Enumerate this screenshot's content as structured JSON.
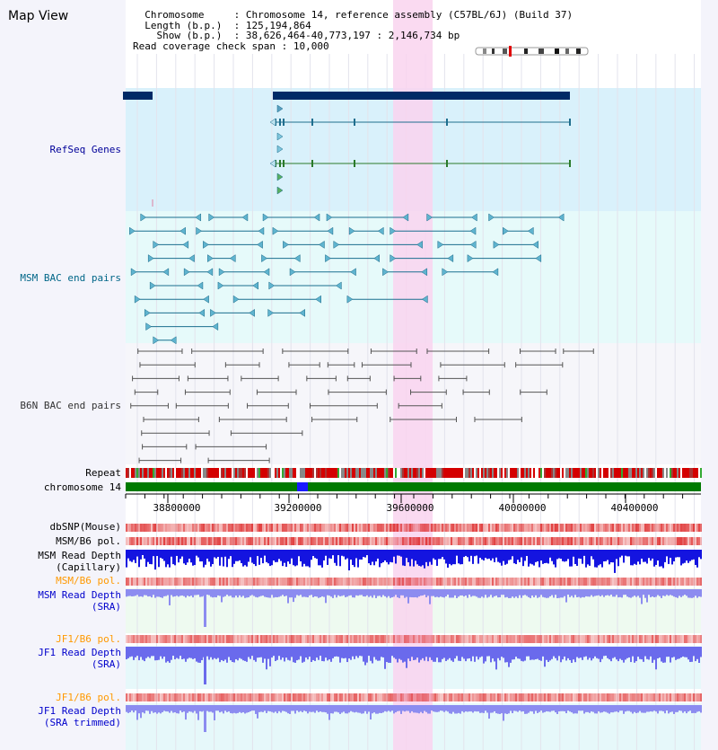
{
  "header": {
    "title": "Map View",
    "chromosome_label": "Chromosome",
    "chromosome_value": "Chromosome 14, reference assembly (C57BL/6J) (Build 37)",
    "length_label": "Length (b.p.)",
    "length_value": "125,194,864",
    "show_label": "Show (b.p.)",
    "show_value": "38,626,464-40,773,197 : 2,146,734 bp",
    "coverage_label": "Read coverage check span",
    "coverage_value": "10,000"
  },
  "tracks": {
    "refseq": {
      "label": "RefSeq Genes",
      "color": "#000099"
    },
    "msm_bac": {
      "label": "MSM BAC end pairs",
      "color": "#006688"
    },
    "b6n_bac": {
      "label": "B6N BAC end pairs",
      "color": "#333333"
    },
    "repeat": {
      "label": "Repeat"
    },
    "chromosome": {
      "label": "chromosome 14"
    },
    "dbsnp": {
      "label": "dbSNP(Mouse)"
    },
    "msm_b6_pol": {
      "label": "MSM/B6 pol."
    },
    "msm_depth_cap": {
      "label": "MSM Read Depth",
      "sub": "(Capillary)"
    },
    "msm_b6_pol_sra": {
      "label": "MSM/B6 pol.",
      "color": "#ff9900"
    },
    "msm_depth_sra": {
      "label": "MSM Read Depth",
      "sub": "(SRA)",
      "color": "#0000cc"
    },
    "jf1_b6_pol": {
      "label": "JF1/B6 pol.",
      "color": "#ff9900"
    },
    "jf1_depth_sra": {
      "label": "JF1 Read Depth",
      "sub": "(SRA)",
      "color": "#0000cc"
    },
    "jf1_b6_pol_trim": {
      "label": "JF1/B6 pol.",
      "color": "#ff9900"
    },
    "jf1_depth_trim": {
      "label": "JF1 Read Depth",
      "sub": "(SRA trimmed)",
      "color": "#0000cc"
    }
  },
  "axis": {
    "ticks": [
      "38800000",
      "39200000",
      "39600000",
      "40000000",
      "40400000"
    ]
  },
  "colors": {
    "highlight": "#f9d4ef",
    "refseq_bg": "#d9f1fb",
    "bac_bg": "#e6fafa",
    "gene_dark": "#002a66",
    "chrom_green": "#007a00",
    "chrom_blue": "#1a1aff"
  }
}
